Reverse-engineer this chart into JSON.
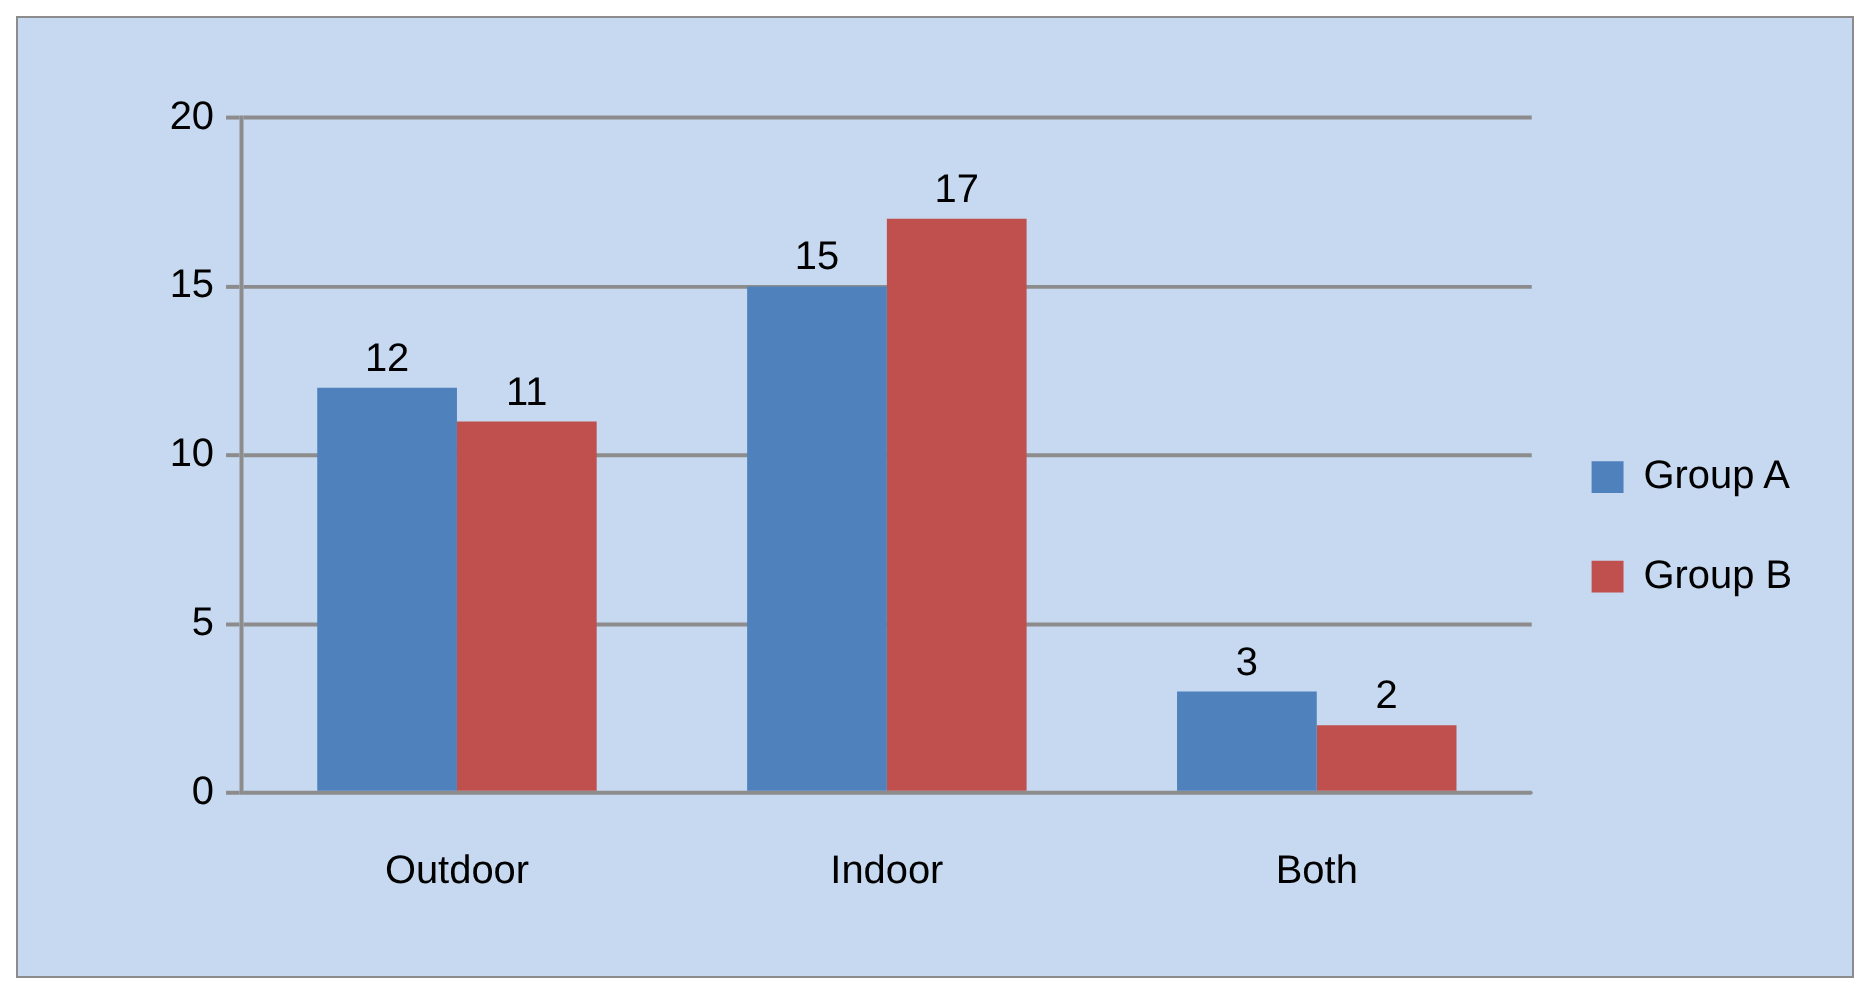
{
  "chart_data": {
    "type": "bar",
    "categories": [
      "Outdoor",
      "Indoor",
      "Both"
    ],
    "series": [
      {
        "name": "Group A",
        "color": "#4f81bd",
        "values": [
          12,
          15,
          3
        ]
      },
      {
        "name": "Group B",
        "color": "#c0504d",
        "values": [
          11,
          17,
          2
        ]
      }
    ],
    "ylim": [
      0,
      20
    ],
    "yticks": [
      0,
      5,
      10,
      15,
      20
    ],
    "grid": "y",
    "legend": "right",
    "data_labels": true
  }
}
